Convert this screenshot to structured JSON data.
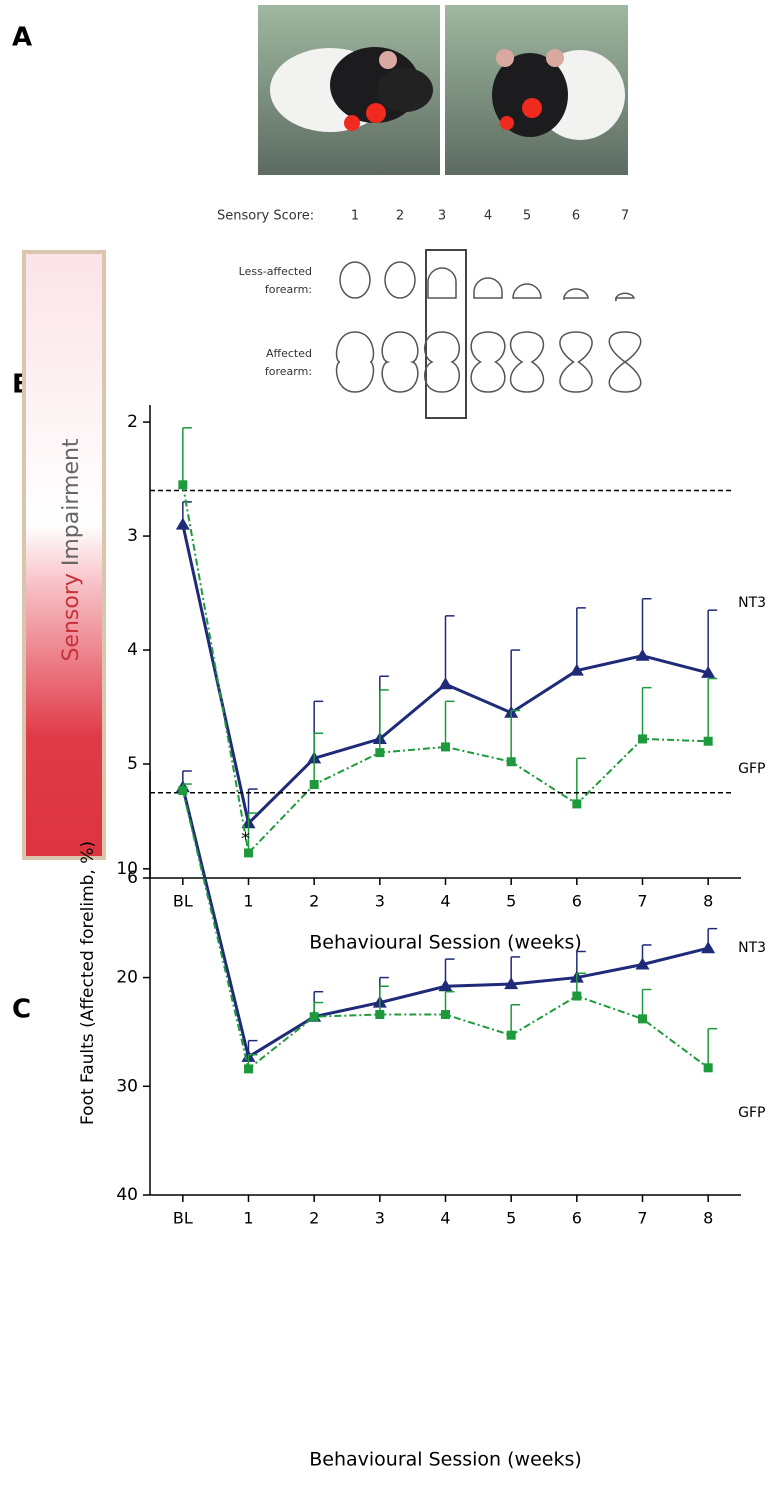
{
  "panel_labels": [
    "A",
    "B",
    "C"
  ],
  "sensory_scale": {
    "label": "Sensory Score:",
    "scores": [
      1,
      2,
      3,
      4,
      5,
      6,
      7
    ],
    "less_affected_label": [
      "Less-affected",
      "forearm:"
    ],
    "affected_label": [
      "Affected",
      "forearm:"
    ]
  },
  "impairment_bar": {
    "word1": "Sensory",
    "word2": "Impairment"
  },
  "chart_data": [
    {
      "type": "line",
      "x_label": "Behavioural Session (weeks)",
      "categories": [
        "BL",
        "1",
        "2",
        "3",
        "4",
        "5",
        "6",
        "7",
        "8"
      ],
      "ylim": [
        1.85,
        6
      ],
      "y_inverted": true,
      "yticks": [
        2,
        3,
        4,
        5,
        6
      ],
      "baseline": 2.6,
      "annotations": [
        "*"
      ],
      "series": [
        {
          "name": "NT3",
          "color": "#1f2a78",
          "marker": "triangle",
          "dashed": false,
          "values": [
            2.9,
            5.52,
            4.95,
            4.78,
            4.3,
            4.55,
            4.18,
            4.05,
            4.2
          ],
          "errors": [
            0.2,
            0.3,
            0.5,
            0.55,
            0.6,
            0.55,
            0.55,
            0.5,
            0.55
          ]
        },
        {
          "name": "GFP",
          "color": "#1e9a3c",
          "marker": "square",
          "dashed": true,
          "values": [
            2.55,
            5.78,
            5.18,
            4.9,
            4.85,
            4.98,
            5.35,
            4.78,
            4.8
          ],
          "errors": [
            0.5,
            0.35,
            0.45,
            0.55,
            0.4,
            0.45,
            0.4,
            0.45,
            0.55
          ]
        }
      ]
    },
    {
      "type": "line",
      "x_label": "Behavioural Session (weeks)",
      "y_label": "Foot Faults (Affected forelimb, %)",
      "categories": [
        "BL",
        "1",
        "2",
        "3",
        "4",
        "5",
        "6",
        "7",
        "8"
      ],
      "ylim": [
        1,
        40
      ],
      "y_inverted": true,
      "yticks": [
        10,
        20,
        30,
        40
      ],
      "baseline": 3,
      "series": [
        {
          "name": "NT3",
          "color": "#1f2a78",
          "marker": "triangle",
          "dashed": false,
          "values": [
            2.5,
            27.3,
            23.6,
            22.3,
            20.8,
            20.6,
            20.0,
            18.8,
            17.3
          ],
          "errors": [
            1.5,
            1.5,
            2.3,
            2.3,
            2.5,
            2.5,
            2.4,
            1.8,
            1.8
          ]
        },
        {
          "name": "GFP",
          "color": "#1e9a3c",
          "marker": "square",
          "dashed": true,
          "values": [
            2.8,
            28.4,
            23.6,
            23.4,
            23.4,
            25.3,
            21.7,
            23.8,
            28.3
          ],
          "errors": [
            0.6,
            1.3,
            1.3,
            2.6,
            2.1,
            2.8,
            2.1,
            2.7,
            3.6
          ]
        }
      ]
    }
  ]
}
